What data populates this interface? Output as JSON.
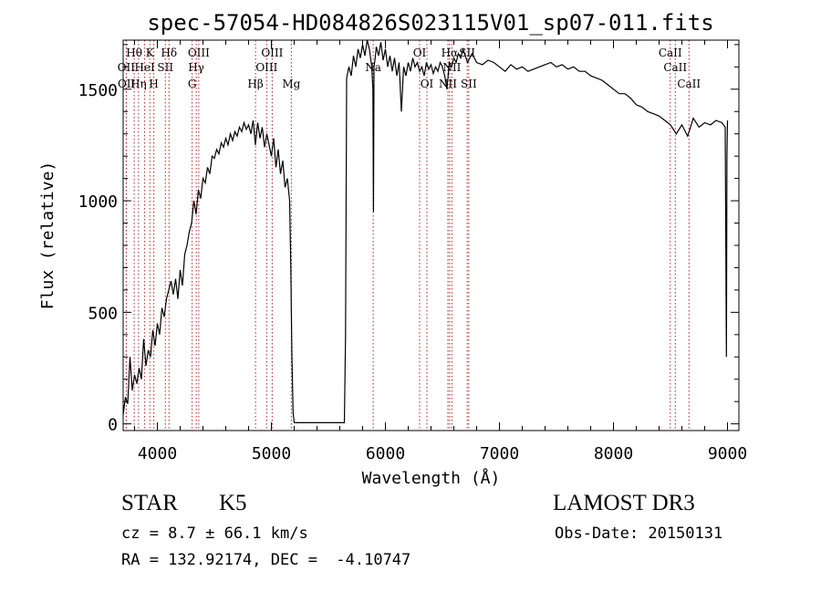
{
  "chart_data": {
    "type": "line",
    "title": "spec-57054-HD084826S023115V01_sp07-011.fits",
    "xlabel": "Wavelength (Å)",
    "ylabel": "Flux (relative)",
    "xlim": [
      3700,
      9100
    ],
    "ylim": [
      -30,
      1720
    ],
    "x_ticks": [
      4000,
      5000,
      6000,
      7000,
      8000,
      9000
    ],
    "y_ticks": [
      0,
      500,
      1000,
      1500
    ],
    "grid": false,
    "series": [
      {
        "color": "#000000",
        "x": [
          3700,
          3720,
          3740,
          3760,
          3780,
          3800,
          3820,
          3840,
          3860,
          3880,
          3900,
          3920,
          3940,
          3960,
          3980,
          4000,
          4020,
          4040,
          4060,
          4080,
          4100,
          4120,
          4140,
          4160,
          4180,
          4200,
          4220,
          4240,
          4260,
          4280,
          4300,
          4320,
          4340,
          4360,
          4380,
          4400,
          4420,
          4440,
          4460,
          4480,
          4500,
          4520,
          4540,
          4560,
          4580,
          4600,
          4620,
          4640,
          4660,
          4680,
          4700,
          4720,
          4740,
          4760,
          4780,
          4800,
          4820,
          4840,
          4860,
          4880,
          4900,
          4920,
          4940,
          4960,
          4980,
          5000,
          5020,
          5040,
          5060,
          5080,
          5100,
          5120,
          5140,
          5160,
          5170,
          5180,
          5190,
          5200,
          5300,
          5400,
          5500,
          5600,
          5640,
          5650,
          5660,
          5680,
          5700,
          5720,
          5740,
          5760,
          5780,
          5800,
          5820,
          5840,
          5860,
          5880,
          5890,
          5895,
          5900,
          5910,
          5920,
          5940,
          5960,
          5980,
          6000,
          6020,
          6040,
          6060,
          6080,
          6100,
          6120,
          6140,
          6160,
          6180,
          6200,
          6220,
          6240,
          6260,
          6280,
          6300,
          6320,
          6340,
          6360,
          6380,
          6400,
          6420,
          6440,
          6460,
          6480,
          6500,
          6520,
          6540,
          6560,
          6580,
          6600,
          6620,
          6640,
          6660,
          6680,
          6700,
          6720,
          6740,
          6760,
          6780,
          6800,
          6850,
          6900,
          6950,
          7000,
          7050,
          7100,
          7150,
          7200,
          7250,
          7300,
          7350,
          7400,
          7450,
          7500,
          7550,
          7600,
          7650,
          7700,
          7750,
          7800,
          7850,
          7900,
          7950,
          8000,
          8050,
          8100,
          8150,
          8200,
          8250,
          8300,
          8350,
          8400,
          8450,
          8500,
          8550,
          8600,
          8650,
          8700,
          8750,
          8800,
          8850,
          8900,
          8950,
          8980,
          8990,
          8995,
          9000
        ],
        "y": [
          40,
          120,
          90,
          300,
          150,
          220,
          180,
          250,
          200,
          380,
          260,
          330,
          300,
          420,
          350,
          450,
          400,
          520,
          480,
          560,
          600,
          640,
          580,
          650,
          560,
          690,
          620,
          760,
          800,
          860,
          900,
          1000,
          940,
          1050,
          1010,
          1100,
          1080,
          1150,
          1120,
          1200,
          1190,
          1230,
          1210,
          1260,
          1240,
          1280,
          1250,
          1300,
          1270,
          1310,
          1290,
          1330,
          1310,
          1350,
          1320,
          1340,
          1300,
          1360,
          1250,
          1350,
          1280,
          1330,
          1240,
          1300,
          1250,
          1200,
          1280,
          1150,
          1230,
          1120,
          1180,
          1060,
          1100,
          1000,
          700,
          300,
          50,
          5,
          5,
          5,
          5,
          5,
          5,
          400,
          1550,
          1600,
          1560,
          1650,
          1600,
          1680,
          1640,
          1700,
          1650,
          1720,
          1680,
          1600,
          1500,
          950,
          1600,
          1640,
          1690,
          1650,
          1710,
          1630,
          1680,
          1600,
          1650,
          1580,
          1640,
          1560,
          1620,
          1400,
          1600,
          1560,
          1620,
          1580,
          1640,
          1600,
          1620,
          1580,
          1600,
          1560,
          1620,
          1590,
          1610,
          1570,
          1600,
          1580,
          1620,
          1600,
          1560,
          1500,
          1620,
          1600,
          1640,
          1620,
          1660,
          1640,
          1680,
          1650,
          1620,
          1640,
          1660,
          1640,
          1620,
          1610,
          1630,
          1620,
          1600,
          1580,
          1610,
          1590,
          1600,
          1580,
          1590,
          1600,
          1610,
          1620,
          1600,
          1610,
          1590,
          1600,
          1580,
          1580,
          1560,
          1550,
          1540,
          1520,
          1500,
          1480,
          1480,
          1460,
          1430,
          1420,
          1400,
          1390,
          1380,
          1360,
          1340,
          1300,
          1340,
          1290,
          1370,
          1330,
          1350,
          1340,
          1360,
          1350,
          1330,
          300,
          1200,
          1360
        ]
      }
    ],
    "line_markers": [
      {
        "label": "Hθ",
        "wave": 3797,
        "row": 1
      },
      {
        "label": "OII",
        "wave": 3727,
        "row": 2
      },
      {
        "label": "OII",
        "wave": 3729,
        "row": 3
      },
      {
        "label": "Hη",
        "wave": 3835,
        "row": 3
      },
      {
        "label": "K",
        "wave": 3934,
        "row": 1
      },
      {
        "label": "H",
        "wave": 3969,
        "row": 3
      },
      {
        "label": "HeI",
        "wave": 3889,
        "row": 2
      },
      {
        "label": "SII",
        "wave": 4070,
        "row": 2
      },
      {
        "label": "Hδ",
        "wave": 4102,
        "row": 1
      },
      {
        "label": "OIII",
        "wave": 4363,
        "row": 1
      },
      {
        "label": "Hγ",
        "wave": 4341,
        "row": 2
      },
      {
        "label": "G",
        "wave": 4305,
        "row": 3
      },
      {
        "label": "Hβ",
        "wave": 4861,
        "row": 3
      },
      {
        "label": "OIII",
        "wave": 4959,
        "row": 2
      },
      {
        "label": "OIII",
        "wave": 5007,
        "row": 1
      },
      {
        "label": "Mg",
        "wave": 5175,
        "row": 3
      },
      {
        "label": "Na",
        "wave": 5893,
        "row": 2
      },
      {
        "label": "OI",
        "wave": 6300,
        "row": 1
      },
      {
        "label": "OI",
        "wave": 6364,
        "row": 3
      },
      {
        "label": "Hα",
        "wave": 6563,
        "row": 1
      },
      {
        "label": "NII",
        "wave": 6548,
        "row": 3
      },
      {
        "label": "NII",
        "wave": 6583,
        "row": 2
      },
      {
        "label": "SII",
        "wave": 6717,
        "row": 1
      },
      {
        "label": "SII",
        "wave": 6731,
        "row": 3
      },
      {
        "label": "CaII",
        "wave": 8498,
        "row": 1
      },
      {
        "label": "CaII",
        "wave": 8542,
        "row": 2
      },
      {
        "label": "CaII",
        "wave": 8662,
        "row": 3
      }
    ]
  },
  "info": {
    "object_type": "STAR",
    "subclass": "K5",
    "survey": "LAMOST DR3",
    "redshift": "cz = 8.7 ± 66.1 km/s",
    "obs_date": "Obs-Date: 20150131",
    "coords": "RA = 132.92174, DEC =  -4.10747"
  },
  "colors": {
    "spectrum": "#000000",
    "marker": "#b22222",
    "axis": "#000000",
    "background": "#ffffff"
  }
}
